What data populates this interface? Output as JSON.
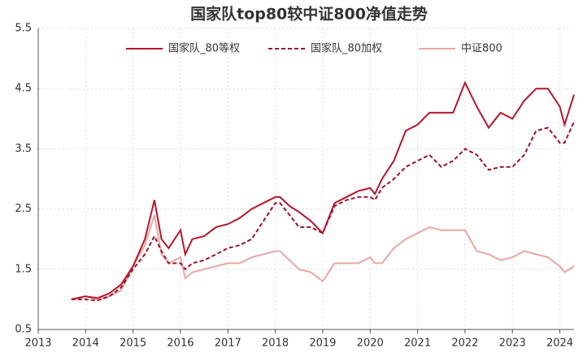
{
  "chart_data": {
    "type": "line",
    "title": "国家队top80较中证800净值走势",
    "x": [
      2013.7,
      2014.0,
      2014.25,
      2014.5,
      2014.75,
      2015.0,
      2015.25,
      2015.45,
      2015.6,
      2015.75,
      2016.0,
      2016.1,
      2016.25,
      2016.5,
      2016.75,
      2017.0,
      2017.25,
      2017.5,
      2017.75,
      2018.0,
      2018.1,
      2018.3,
      2018.5,
      2018.75,
      2019.0,
      2019.25,
      2019.5,
      2019.75,
      2020.0,
      2020.1,
      2020.25,
      2020.5,
      2020.75,
      2021.0,
      2021.25,
      2021.5,
      2021.75,
      2022.0,
      2022.25,
      2022.5,
      2022.75,
      2023.0,
      2023.25,
      2023.5,
      2023.75,
      2024.0,
      2024.1,
      2024.3
    ],
    "series": [
      {
        "name": "国家队_80等权",
        "color": "#b5162b",
        "dash": false,
        "values": [
          1.0,
          1.05,
          1.02,
          1.1,
          1.25,
          1.55,
          2.0,
          2.65,
          2.0,
          1.85,
          2.15,
          1.75,
          2.0,
          2.05,
          2.2,
          2.25,
          2.35,
          2.5,
          2.6,
          2.7,
          2.7,
          2.55,
          2.45,
          2.3,
          2.1,
          2.6,
          2.7,
          2.8,
          2.85,
          2.75,
          3.0,
          3.3,
          3.8,
          3.9,
          4.1,
          4.1,
          4.1,
          4.6,
          4.2,
          3.85,
          4.1,
          4.0,
          4.3,
          4.5,
          4.5,
          4.2,
          3.9,
          4.4
        ]
      },
      {
        "name": "国家队_80加权",
        "color": "#a0102a",
        "dash": true,
        "values": [
          1.0,
          1.0,
          0.98,
          1.05,
          1.2,
          1.5,
          1.75,
          2.05,
          1.8,
          1.6,
          1.6,
          1.5,
          1.6,
          1.65,
          1.75,
          1.85,
          1.9,
          2.0,
          2.3,
          2.6,
          2.6,
          2.4,
          2.2,
          2.2,
          2.1,
          2.55,
          2.65,
          2.7,
          2.7,
          2.65,
          2.85,
          3.0,
          3.2,
          3.3,
          3.4,
          3.2,
          3.3,
          3.5,
          3.4,
          3.15,
          3.2,
          3.2,
          3.4,
          3.8,
          3.85,
          3.6,
          3.6,
          3.95
        ]
      },
      {
        "name": "中证800",
        "color": "#e8a7a4",
        "dash": false,
        "values": [
          1.0,
          1.05,
          1.0,
          1.05,
          1.15,
          1.55,
          1.9,
          2.4,
          1.75,
          1.6,
          1.7,
          1.35,
          1.45,
          1.5,
          1.55,
          1.6,
          1.6,
          1.7,
          1.75,
          1.8,
          1.8,
          1.65,
          1.5,
          1.45,
          1.3,
          1.6,
          1.6,
          1.6,
          1.7,
          1.6,
          1.6,
          1.85,
          2.0,
          2.1,
          2.2,
          2.15,
          2.15,
          2.15,
          1.8,
          1.75,
          1.65,
          1.7,
          1.8,
          1.75,
          1.7,
          1.55,
          1.45,
          1.55
        ]
      }
    ],
    "xlim": [
      2013,
      2024.3
    ],
    "xticks": [
      2013,
      2014,
      2015,
      2016,
      2017,
      2018,
      2019,
      2020,
      2021,
      2022,
      2023,
      2024
    ],
    "ylim": [
      0.5,
      5.5
    ],
    "yticks": [
      0.5,
      1.5,
      2.5,
      3.5,
      4.5,
      5.5
    ],
    "grid": true
  }
}
